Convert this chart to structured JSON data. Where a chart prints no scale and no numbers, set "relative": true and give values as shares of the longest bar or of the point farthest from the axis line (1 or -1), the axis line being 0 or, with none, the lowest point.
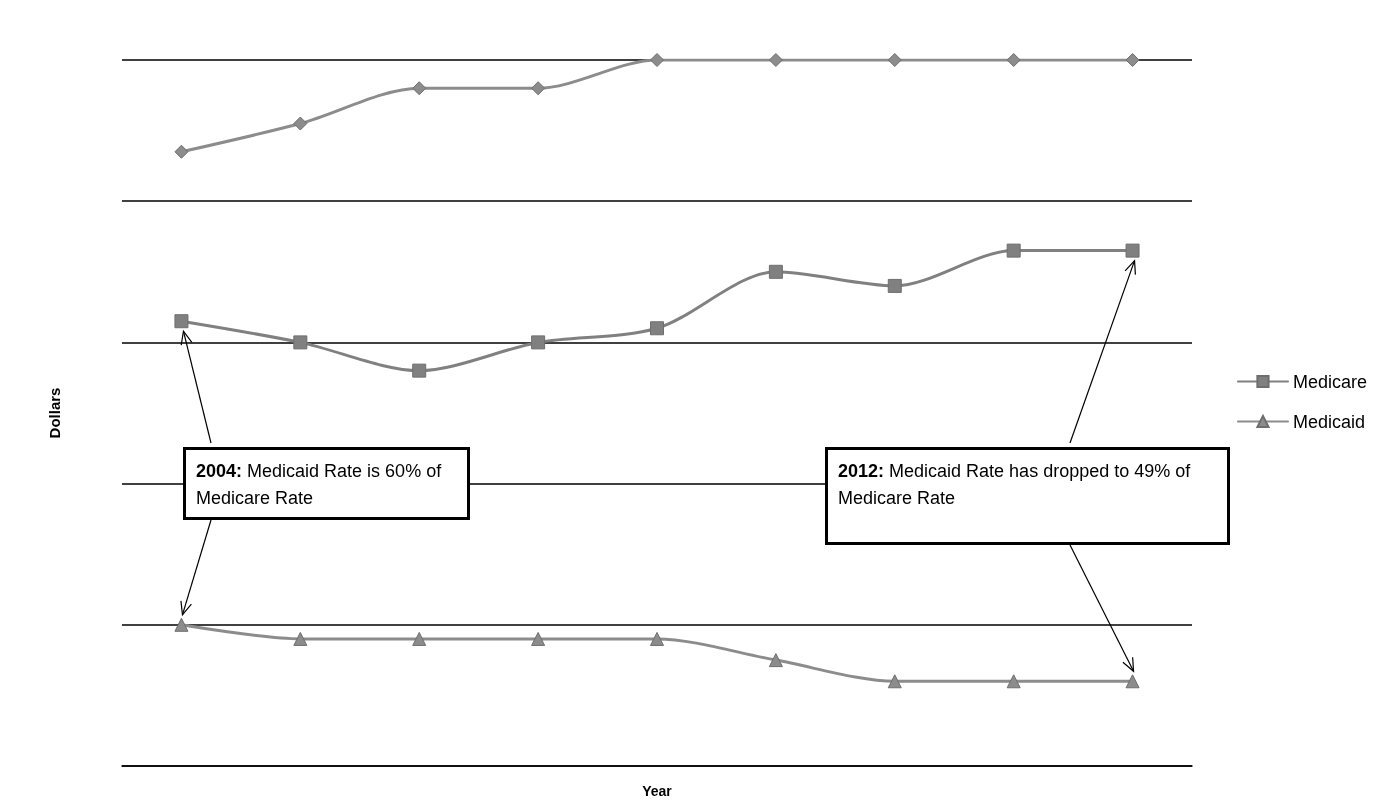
{
  "chart_data": {
    "type": "line",
    "relative": true,
    "xlabel": "Year",
    "ylabel": "Dollars",
    "categories": [
      null,
      null,
      null,
      null,
      null,
      null,
      null,
      null,
      null
    ],
    "series": [
      {
        "color": "#8c8c8c",
        "marker": "diamond",
        "values": [
          0.87,
          0.91,
          0.96,
          0.96,
          1,
          1,
          1,
          1,
          1
        ]
      },
      {
        "name": "Medicare",
        "color": "#808080",
        "marker": "square",
        "values": [
          0.63,
          0.6,
          0.56,
          0.6,
          0.62,
          0.7,
          0.68,
          0.73,
          0.73
        ]
      },
      {
        "name": "Medicaid",
        "color": "#8c8c8c",
        "marker": "triangle",
        "values": [
          0.2,
          0.18,
          0.18,
          0.18,
          0.18,
          0.15,
          0.12,
          0.12,
          0.12
        ]
      }
    ],
    "annotations": [
      "2004: Medicaid Rate is 60% of Medicare Rate",
      "2012: Medicaid Rate has dropped to 49% of Medicare Rate"
    ],
    "grid": true,
    "legend": "right",
    "line_style": "solid"
  }
}
